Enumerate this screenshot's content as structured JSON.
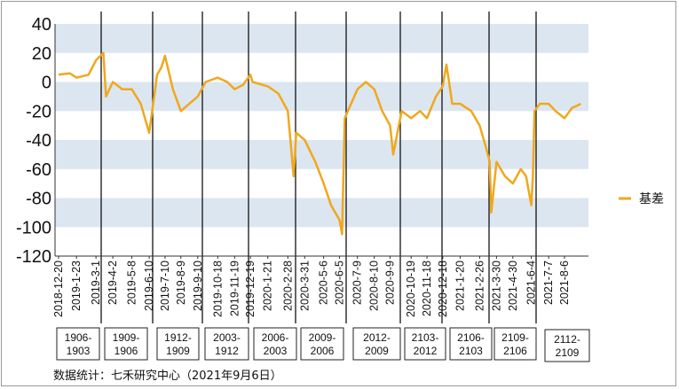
{
  "chart_data": {
    "type": "line",
    "legend_position": "right",
    "grid": "alternating horizontal bands",
    "colors": {
      "series": "#f0a81c",
      "band": "#dce6f1",
      "divider": "#000000"
    },
    "ylim": [
      -120,
      40
    ],
    "yticks": [
      40,
      20,
      0,
      -20,
      -40,
      -60,
      -80,
      -100,
      -120
    ],
    "x_tick_labels": [
      "2018-12-20",
      "2019-1-23",
      "2019-3-1",
      "2019-4-2",
      "2019-5-8",
      "2019-6-10",
      "2019-7-10",
      "2019-8-9",
      "2019-9-10",
      "2019-10-18",
      "2019-11-19",
      "2019-12-19",
      "2020-1-21",
      "2020-2-28",
      "2020-3-31",
      "2020-5-6",
      "2020-6-5",
      "2020-7-9",
      "2020-8-10",
      "2020-9-9",
      "2020-10-19",
      "2020-11-18",
      "2020-12-18",
      "2021-1-20",
      "2021-2-26",
      "2021-3-30",
      "2021-4-30",
      "2021-6-4",
      "2021-7-7",
      "2021-8-6"
    ],
    "contracts": [
      "1906-1903",
      "1909-1906",
      "1912-1909",
      "2003-1912",
      "2006-2003",
      "2009-2006",
      "2012-2009",
      "2103-2012",
      "2106-2103",
      "2109-2106",
      "2112-2109"
    ],
    "series": [
      {
        "name": "基差",
        "x": [
          "2018-12-20",
          "2019-1-10",
          "2019-1-23",
          "2019-2-15",
          "2019-3-1",
          "2019-3-15",
          "2019-3-20",
          "2019-4-2",
          "2019-4-20",
          "2019-5-8",
          "2019-5-25",
          "2019-6-10",
          "2019-6-25",
          "2019-7-3",
          "2019-7-10",
          "2019-7-25",
          "2019-8-9",
          "2019-8-25",
          "2019-9-10",
          "2019-9-25",
          "2019-10-18",
          "2019-11-5",
          "2019-11-19",
          "2019-12-5",
          "2019-12-19",
          "2019-12-23",
          "2020-1-21",
          "2020-2-10",
          "2020-2-28",
          "2020-3-10",
          "2020-3-15",
          "2020-3-31",
          "2020-4-20",
          "2020-5-6",
          "2020-5-20",
          "2020-6-5",
          "2020-6-10",
          "2020-6-15",
          "2020-7-9",
          "2020-7-25",
          "2020-8-10",
          "2020-8-25",
          "2020-9-9",
          "2020-9-15",
          "2020-10-1",
          "2020-10-19",
          "2020-11-5",
          "2020-11-18",
          "2020-12-5",
          "2020-12-18",
          "2020-12-25",
          "2021-1-5",
          "2021-1-20",
          "2021-2-10",
          "2021-2-26",
          "2021-3-10",
          "2021-3-17",
          "2021-3-20",
          "2021-3-30",
          "2021-4-15",
          "2021-4-30",
          "2021-5-15",
          "2021-5-25",
          "2021-6-4",
          "2021-6-7",
          "2021-6-10",
          "2021-6-20",
          "2021-7-7",
          "2021-7-20",
          "2021-8-6",
          "2021-8-20",
          "2021-9-6"
        ],
        "values": [
          5,
          6,
          3,
          5,
          15,
          20,
          -10,
          0,
          -5,
          -5,
          -15,
          -35,
          5,
          10,
          18,
          -5,
          -20,
          -15,
          -10,
          0,
          3,
          0,
          -5,
          -2,
          5,
          0,
          -3,
          -8,
          -20,
          -65,
          -35,
          -40,
          -55,
          -70,
          -85,
          -95,
          -105,
          -25,
          -5,
          0,
          -5,
          -20,
          -30,
          -50,
          -20,
          -25,
          -20,
          -25,
          -10,
          -3,
          12,
          -15,
          -15,
          -20,
          -30,
          -45,
          -55,
          -90,
          -55,
          -65,
          -70,
          -60,
          -65,
          -85,
          -65,
          -20,
          -15,
          -15,
          -20,
          -25,
          -18,
          -15
        ]
      }
    ],
    "source": "数据统计：七禾研究中心（2021年9月6日）"
  }
}
